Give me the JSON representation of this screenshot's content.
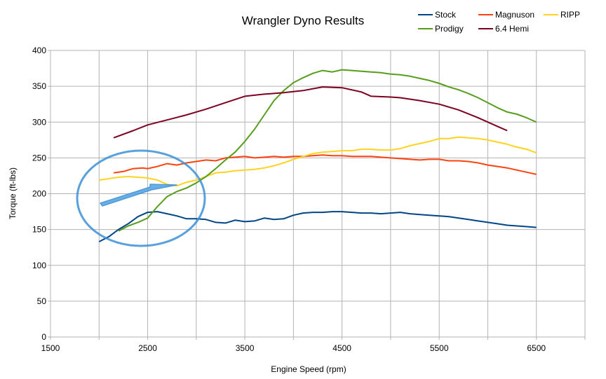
{
  "chart_data": {
    "type": "line",
    "title": "Wrangler Dyno Results",
    "xlabel": "Engine Speed (rpm)",
    "ylabel": "Torque (ft-lbs)",
    "xlim": [
      1500,
      7000
    ],
    "ylim": [
      0,
      400
    ],
    "xticks": [
      1500,
      2500,
      3500,
      4500,
      5500,
      6500
    ],
    "yticks": [
      0,
      50,
      100,
      150,
      200,
      250,
      300,
      350,
      400
    ],
    "grid": true,
    "legend_position": "top-right",
    "annotation": "blue-circle-and-arrow-highlight",
    "series": [
      {
        "name": "Stock",
        "color": "#004586",
        "points": [
          [
            2000,
            133
          ],
          [
            2100,
            140
          ],
          [
            2200,
            150
          ],
          [
            2300,
            158
          ],
          [
            2400,
            168
          ],
          [
            2500,
            174
          ],
          [
            2600,
            175
          ],
          [
            2700,
            172
          ],
          [
            2800,
            169
          ],
          [
            2900,
            165
          ],
          [
            3000,
            165
          ],
          [
            3100,
            164
          ],
          [
            3200,
            160
          ],
          [
            3300,
            159
          ],
          [
            3400,
            163
          ],
          [
            3500,
            161
          ],
          [
            3600,
            162
          ],
          [
            3700,
            166
          ],
          [
            3800,
            164
          ],
          [
            3900,
            165
          ],
          [
            4000,
            170
          ],
          [
            4100,
            173
          ],
          [
            4200,
            174
          ],
          [
            4300,
            174
          ],
          [
            4400,
            175
          ],
          [
            4500,
            175
          ],
          [
            4600,
            174
          ],
          [
            4700,
            173
          ],
          [
            4800,
            173
          ],
          [
            4900,
            172
          ],
          [
            5000,
            173
          ],
          [
            5100,
            174
          ],
          [
            5200,
            172
          ],
          [
            5300,
            171
          ],
          [
            5400,
            170
          ],
          [
            5500,
            169
          ],
          [
            5600,
            168
          ],
          [
            5700,
            166
          ],
          [
            5800,
            164
          ],
          [
            5900,
            162
          ],
          [
            6000,
            160
          ],
          [
            6100,
            158
          ],
          [
            6200,
            156
          ],
          [
            6300,
            155
          ],
          [
            6400,
            154
          ],
          [
            6500,
            153
          ]
        ]
      },
      {
        "name": "Magnuson",
        "color": "#ff420e",
        "points": [
          [
            2150,
            229
          ],
          [
            2250,
            231
          ],
          [
            2350,
            235
          ],
          [
            2450,
            236
          ],
          [
            2500,
            235
          ],
          [
            2600,
            238
          ],
          [
            2700,
            242
          ],
          [
            2800,
            240
          ],
          [
            2900,
            243
          ],
          [
            3000,
            245
          ],
          [
            3100,
            247
          ],
          [
            3200,
            246
          ],
          [
            3300,
            250
          ],
          [
            3400,
            251
          ],
          [
            3500,
            252
          ],
          [
            3600,
            250
          ],
          [
            3700,
            251
          ],
          [
            3800,
            252
          ],
          [
            3900,
            251
          ],
          [
            4000,
            252
          ],
          [
            4100,
            252
          ],
          [
            4200,
            253
          ],
          [
            4300,
            254
          ],
          [
            4400,
            253
          ],
          [
            4500,
            253
          ],
          [
            4600,
            252
          ],
          [
            4700,
            252
          ],
          [
            4800,
            252
          ],
          [
            4900,
            251
          ],
          [
            5000,
            250
          ],
          [
            5100,
            249
          ],
          [
            5200,
            248
          ],
          [
            5300,
            247
          ],
          [
            5400,
            248
          ],
          [
            5500,
            248
          ],
          [
            5600,
            246
          ],
          [
            5700,
            246
          ],
          [
            5800,
            245
          ],
          [
            5900,
            243
          ],
          [
            6000,
            240
          ],
          [
            6100,
            238
          ],
          [
            6200,
            236
          ],
          [
            6300,
            233
          ],
          [
            6400,
            230
          ],
          [
            6500,
            227
          ]
        ]
      },
      {
        "name": "RIPP",
        "color": "#ffd320",
        "points": [
          [
            2000,
            219
          ],
          [
            2100,
            221
          ],
          [
            2200,
            223
          ],
          [
            2300,
            224
          ],
          [
            2400,
            223
          ],
          [
            2500,
            222
          ],
          [
            2600,
            219
          ],
          [
            2700,
            213
          ],
          [
            2800,
            211
          ],
          [
            2900,
            216
          ],
          [
            3000,
            219
          ],
          [
            3100,
            224
          ],
          [
            3200,
            229
          ],
          [
            3300,
            230
          ],
          [
            3400,
            232
          ],
          [
            3500,
            233
          ],
          [
            3600,
            234
          ],
          [
            3700,
            236
          ],
          [
            3800,
            239
          ],
          [
            3900,
            243
          ],
          [
            4000,
            248
          ],
          [
            4100,
            252
          ],
          [
            4200,
            256
          ],
          [
            4300,
            258
          ],
          [
            4400,
            259
          ],
          [
            4500,
            260
          ],
          [
            4600,
            260
          ],
          [
            4700,
            262
          ],
          [
            4800,
            262
          ],
          [
            4900,
            261
          ],
          [
            5000,
            261
          ],
          [
            5100,
            263
          ],
          [
            5200,
            267
          ],
          [
            5300,
            270
          ],
          [
            5400,
            273
          ],
          [
            5500,
            277
          ],
          [
            5600,
            277
          ],
          [
            5700,
            279
          ],
          [
            5800,
            278
          ],
          [
            5900,
            277
          ],
          [
            6000,
            275
          ],
          [
            6100,
            272
          ],
          [
            6200,
            269
          ],
          [
            6300,
            265
          ],
          [
            6400,
            262
          ],
          [
            6500,
            257
          ]
        ]
      },
      {
        "name": "Prodigy",
        "color": "#579d1c",
        "points": [
          [
            2200,
            148
          ],
          [
            2300,
            155
          ],
          [
            2400,
            160
          ],
          [
            2500,
            166
          ],
          [
            2600,
            182
          ],
          [
            2700,
            196
          ],
          [
            2800,
            203
          ],
          [
            2900,
            208
          ],
          [
            3000,
            215
          ],
          [
            3100,
            224
          ],
          [
            3200,
            235
          ],
          [
            3300,
            247
          ],
          [
            3400,
            258
          ],
          [
            3500,
            273
          ],
          [
            3600,
            290
          ],
          [
            3700,
            310
          ],
          [
            3800,
            330
          ],
          [
            3900,
            344
          ],
          [
            4000,
            355
          ],
          [
            4100,
            362
          ],
          [
            4200,
            368
          ],
          [
            4300,
            372
          ],
          [
            4400,
            370
          ],
          [
            4500,
            373
          ],
          [
            4600,
            372
          ],
          [
            4700,
            371
          ],
          [
            4800,
            370
          ],
          [
            4900,
            369
          ],
          [
            5000,
            367
          ],
          [
            5100,
            366
          ],
          [
            5200,
            364
          ],
          [
            5300,
            361
          ],
          [
            5400,
            358
          ],
          [
            5500,
            354
          ],
          [
            5600,
            349
          ],
          [
            5700,
            345
          ],
          [
            5800,
            340
          ],
          [
            5900,
            334
          ],
          [
            6000,
            327
          ],
          [
            6100,
            320
          ],
          [
            6200,
            314
          ],
          [
            6300,
            311
          ],
          [
            6400,
            306
          ],
          [
            6500,
            300
          ]
        ]
      },
      {
        "name": "6.4 Hemi",
        "color": "#7e0021",
        "points": [
          [
            2150,
            278
          ],
          [
            2350,
            288
          ],
          [
            2500,
            296
          ],
          [
            2700,
            303
          ],
          [
            2900,
            310
          ],
          [
            3100,
            318
          ],
          [
            3300,
            327
          ],
          [
            3500,
            336
          ],
          [
            3700,
            339
          ],
          [
            3900,
            341
          ],
          [
            4100,
            344
          ],
          [
            4300,
            349
          ],
          [
            4500,
            348
          ],
          [
            4700,
            342
          ],
          [
            4800,
            336
          ],
          [
            5000,
            335
          ],
          [
            5100,
            334
          ],
          [
            5300,
            330
          ],
          [
            5500,
            325
          ],
          [
            5700,
            317
          ],
          [
            5900,
            306
          ],
          [
            6100,
            294
          ],
          [
            6200,
            288
          ]
        ]
      }
    ]
  }
}
